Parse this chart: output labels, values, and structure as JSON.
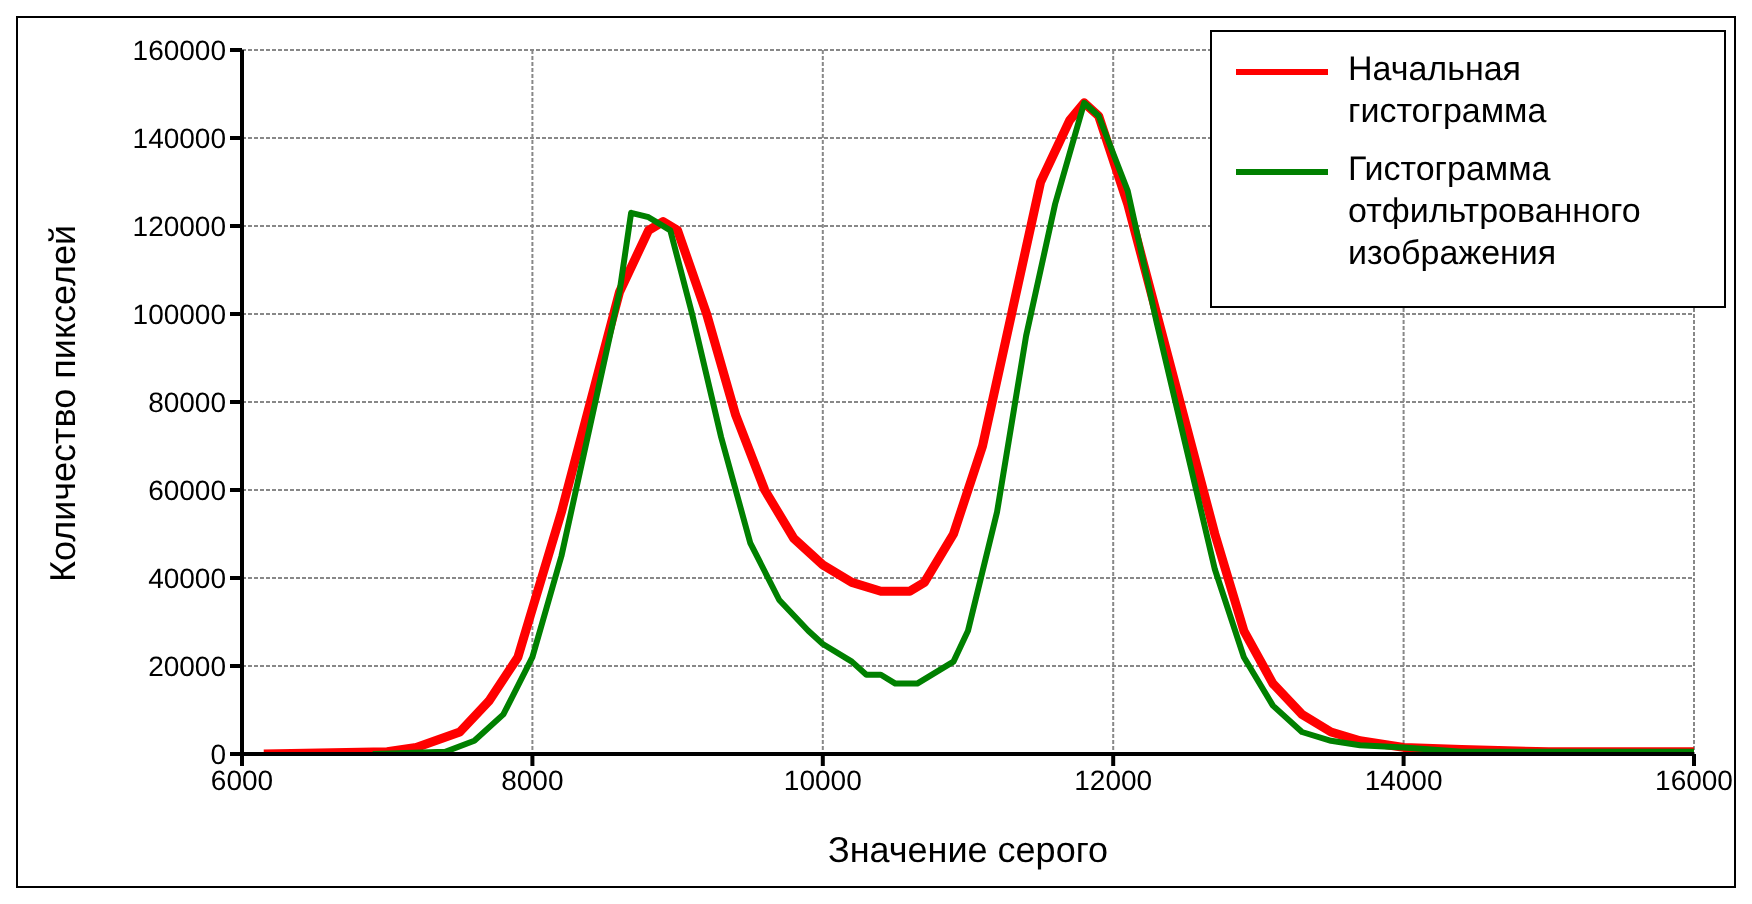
{
  "chart_data": {
    "type": "line",
    "xlabel": "Значение серого",
    "ylabel": "Количество пикселей",
    "xlim": [
      6000,
      16000
    ],
    "xticks": [
      6000,
      8000,
      10000,
      12000,
      14000,
      16000
    ],
    "ylim": [
      0,
      160000
    ],
    "yticks": [
      0,
      20000,
      40000,
      60000,
      80000,
      100000,
      120000,
      140000,
      160000
    ],
    "grid": true,
    "legend": "top right",
    "marker": "none",
    "line_style": "solid",
    "series": [
      {
        "name": "Начальная гистограмма",
        "color": "#ff0000",
        "x": [
          6150,
          7000,
          7200,
          7500,
          7700,
          7900,
          8000,
          8200,
          8400,
          8600,
          8800,
          8900,
          9000,
          9200,
          9400,
          9600,
          9800,
          10000,
          10200,
          10400,
          10600,
          10700,
          10900,
          11100,
          11300,
          11500,
          11700,
          11800,
          11900,
          12100,
          12300,
          12500,
          12700,
          12900,
          13100,
          13300,
          13500,
          13700,
          14000,
          14400,
          15000,
          16000
        ],
        "values": [
          0,
          500,
          1500,
          5000,
          12000,
          22000,
          33000,
          55000,
          80000,
          105000,
          119000,
          121000,
          119000,
          100000,
          77000,
          60000,
          49000,
          43000,
          39000,
          37000,
          37000,
          39000,
          50000,
          70000,
          100000,
          130000,
          144000,
          148000,
          145000,
          125000,
          100000,
          75000,
          50000,
          28000,
          16000,
          9000,
          5000,
          3000,
          1500,
          1000,
          500,
          500
        ]
      },
      {
        "name": "Гистограмма отфильтрованного изображения",
        "color": "#008000",
        "x": [
          6900,
          7400,
          7600,
          7800,
          8000,
          8200,
          8400,
          8600,
          8680,
          8800,
          8950,
          9100,
          9300,
          9500,
          9700,
          9900,
          10000,
          10200,
          10300,
          10400,
          10500,
          10650,
          10900,
          11000,
          11200,
          11400,
          11600,
          11800,
          11900,
          12100,
          12300,
          12500,
          12700,
          12900,
          13100,
          13300,
          13500,
          13700,
          14000,
          14400,
          16000
        ],
        "values": [
          0,
          500,
          3000,
          9000,
          22000,
          45000,
          75000,
          105000,
          123000,
          122000,
          119000,
          100000,
          72000,
          48000,
          35000,
          28000,
          25000,
          21000,
          18000,
          18000,
          16000,
          16000,
          21000,
          28000,
          55000,
          95000,
          125000,
          148000,
          145000,
          128000,
          98000,
          70000,
          42000,
          22000,
          11000,
          5000,
          3000,
          2000,
          1500,
          500,
          500
        ]
      }
    ]
  }
}
